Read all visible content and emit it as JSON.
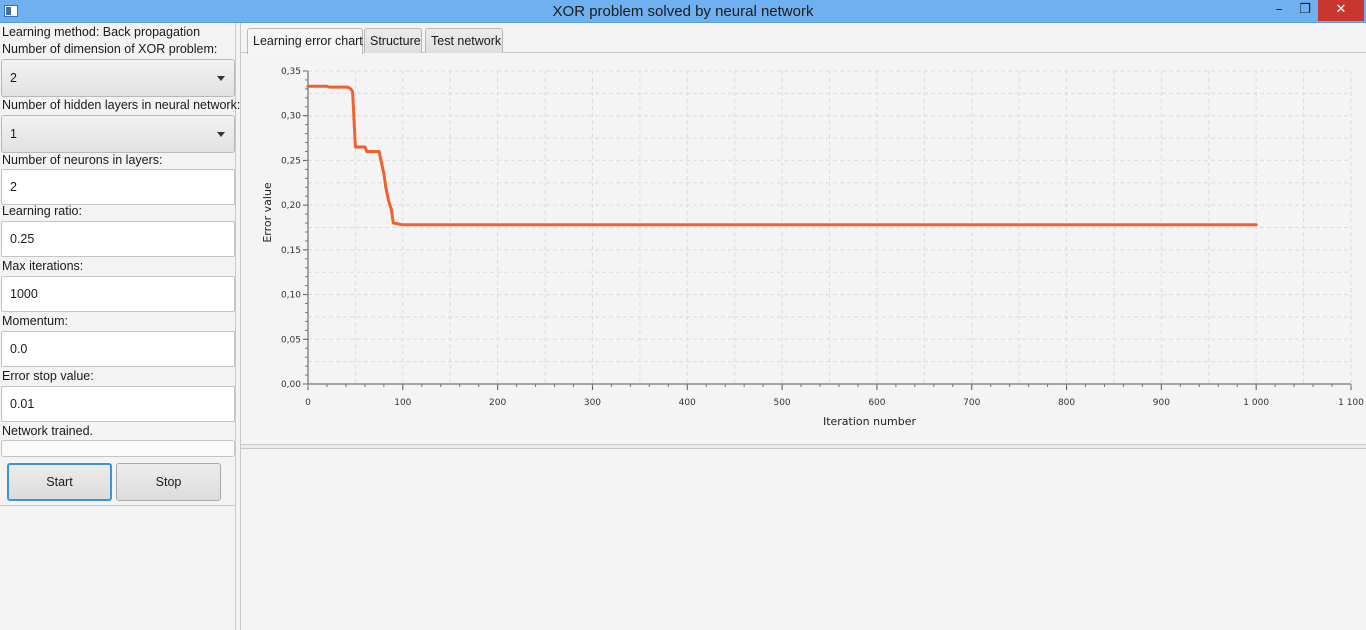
{
  "window": {
    "title": "XOR problem solved by neural network",
    "minimize_glyph": "–",
    "maximize_glyph": "❐",
    "close_glyph": "✕"
  },
  "left_panel": {
    "learning_method_label": "Learning method: Back propagation",
    "dimension_label": "Number of dimension of XOR problem:",
    "dimension_value": "2",
    "hidden_layers_label": "Number of hidden layers in neural network:",
    "hidden_layers_value": "1",
    "neurons_label": "Number of neurons in layers:",
    "neurons_value": "2",
    "learning_ratio_label": "Learning ratio:",
    "learning_ratio_value": "0.25",
    "max_iterations_label": "Max iterations:",
    "max_iterations_value": "1000",
    "momentum_label": "Momentum:",
    "momentum_value": "0.0",
    "error_stop_label": "Error stop value:",
    "error_stop_value": "0.01",
    "status_label": "Network trained.",
    "progress": 0,
    "start_label": "Start",
    "stop_label": "Stop"
  },
  "tabs": [
    {
      "label": "Learning error chart",
      "active": true
    },
    {
      "label": "Structure",
      "active": false
    },
    {
      "label": "Test network",
      "active": false
    }
  ],
  "chart_data": {
    "type": "line",
    "xlabel": "Iteration number",
    "ylabel": "Error value",
    "xlim": [
      0,
      1100
    ],
    "ylim": [
      0,
      0.35
    ],
    "x_ticks": [
      0,
      100,
      200,
      300,
      400,
      500,
      600,
      700,
      800,
      900,
      1000,
      1100
    ],
    "x_tick_labels": [
      "0",
      "100",
      "200",
      "300",
      "400",
      "500",
      "600",
      "700",
      "800",
      "900",
      "1 000",
      "1 100"
    ],
    "y_ticks": [
      0,
      0.05,
      0.1,
      0.15,
      0.2,
      0.25,
      0.3,
      0.35
    ],
    "y_tick_labels": [
      "0,00",
      "0,05",
      "0,10",
      "0,15",
      "0,20",
      "0,25",
      "0,30",
      "0,35"
    ],
    "grid": true,
    "legend": false,
    "line_color": "#f06030",
    "series": [
      {
        "x": [
          0,
          20,
          22,
          42,
          45,
          47,
          50,
          60,
          62,
          75,
          80,
          82,
          85,
          88,
          90,
          100,
          1000
        ],
        "y": [
          0.333,
          0.333,
          0.332,
          0.332,
          0.33,
          0.327,
          0.265,
          0.265,
          0.26,
          0.26,
          0.235,
          0.22,
          0.205,
          0.195,
          0.18,
          0.178,
          0.178
        ]
      }
    ]
  }
}
